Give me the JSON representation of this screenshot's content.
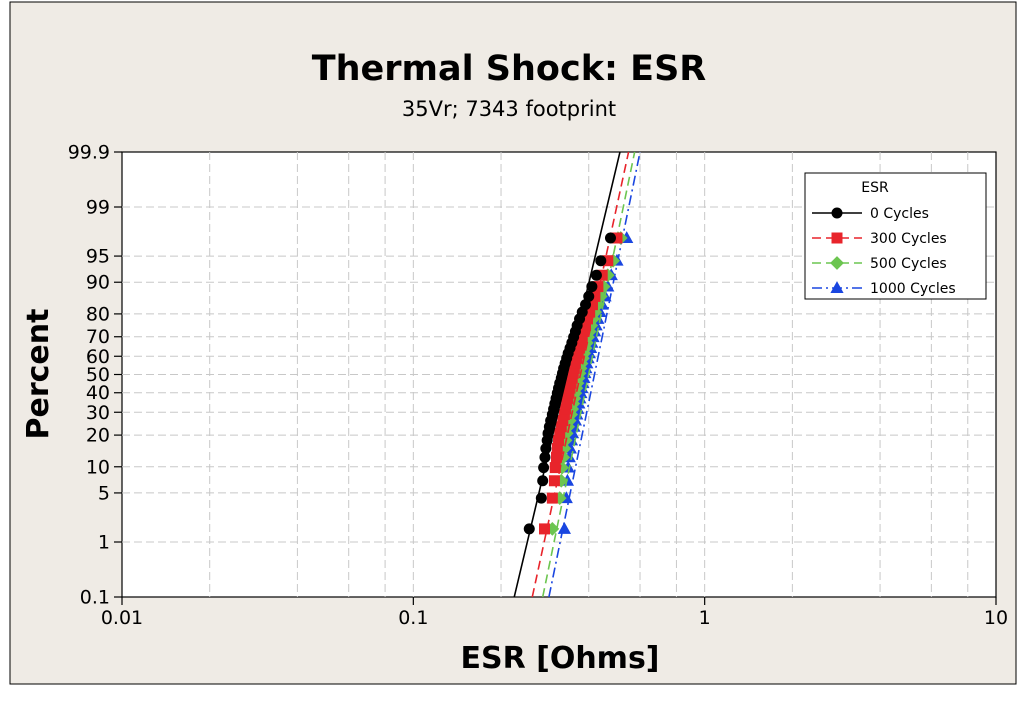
{
  "chart_data": {
    "type": "scatter",
    "title": "Thermal Shock: ESR",
    "subtitle": "35Vr; 7343 footprint",
    "xlabel": "ESR [Ohms]",
    "ylabel": "Percent",
    "x_scale": "log",
    "y_scale": "normal-probability",
    "xlim": [
      0.01,
      10
    ],
    "ylim": [
      0.1,
      99.9
    ],
    "x_ticks": [
      {
        "value": 0.01,
        "label": "0.01"
      },
      {
        "value": 0.1,
        "label": "0.1"
      },
      {
        "value": 1,
        "label": "1"
      },
      {
        "value": 10,
        "label": "10"
      }
    ],
    "y_ticks": [
      {
        "value": 0.1,
        "label": "0.1"
      },
      {
        "value": 1,
        "label": "1"
      },
      {
        "value": 5,
        "label": "5"
      },
      {
        "value": 10,
        "label": "10"
      },
      {
        "value": 20,
        "label": "20"
      },
      {
        "value": 30,
        "label": "30"
      },
      {
        "value": 40,
        "label": "40"
      },
      {
        "value": 50,
        "label": "50"
      },
      {
        "value": 60,
        "label": "60"
      },
      {
        "value": 70,
        "label": "70"
      },
      {
        "value": 80,
        "label": "80"
      },
      {
        "value": 90,
        "label": "90"
      },
      {
        "value": 95,
        "label": "95"
      },
      {
        "value": 99,
        "label": "99"
      },
      {
        "value": 99.9,
        "label": "99.9"
      }
    ],
    "grid": true,
    "legend": {
      "title": "ESR",
      "position": "top-right"
    },
    "series": [
      {
        "name": "0 Cycles",
        "color": "#000000",
        "marker": "circle",
        "line_style": "solid",
        "fit_line": [
          [
            0.222,
            0.1
          ],
          [
            0.512,
            99.9
          ]
        ],
        "points": [
          [
            0.25,
            1.6
          ],
          [
            0.275,
            4.3
          ],
          [
            0.278,
            7.0
          ],
          [
            0.28,
            9.8
          ],
          [
            0.283,
            12.5
          ],
          [
            0.285,
            15.2
          ],
          [
            0.288,
            18.0
          ],
          [
            0.29,
            20.7
          ],
          [
            0.293,
            23.4
          ],
          [
            0.296,
            26.1
          ],
          [
            0.3,
            28.9
          ],
          [
            0.303,
            31.6
          ],
          [
            0.306,
            34.3
          ],
          [
            0.309,
            37.0
          ],
          [
            0.312,
            39.8
          ],
          [
            0.315,
            42.5
          ],
          [
            0.318,
            45.2
          ],
          [
            0.322,
            48.0
          ],
          [
            0.325,
            50.7
          ],
          [
            0.328,
            53.4
          ],
          [
            0.332,
            56.1
          ],
          [
            0.336,
            58.9
          ],
          [
            0.34,
            61.6
          ],
          [
            0.345,
            64.3
          ],
          [
            0.35,
            67.0
          ],
          [
            0.355,
            69.8
          ],
          [
            0.36,
            72.5
          ],
          [
            0.365,
            75.2
          ],
          [
            0.372,
            78.0
          ],
          [
            0.38,
            80.7
          ],
          [
            0.39,
            83.4
          ],
          [
            0.4,
            86.1
          ],
          [
            0.41,
            88.9
          ],
          [
            0.425,
            91.6
          ],
          [
            0.44,
            94.3
          ],
          [
            0.475,
            97.1
          ]
        ]
      },
      {
        "name": "300 Cycles",
        "color": "#e8242b",
        "marker": "square",
        "line_style": "dashed",
        "fit_line": [
          [
            0.256,
            0.1
          ],
          [
            0.548,
            99.9
          ]
        ],
        "points": [
          [
            0.282,
            1.6
          ],
          [
            0.3,
            4.3
          ],
          [
            0.305,
            7.0
          ],
          [
            0.307,
            9.8
          ],
          [
            0.31,
            12.5
          ],
          [
            0.312,
            15.2
          ],
          [
            0.315,
            18.0
          ],
          [
            0.318,
            20.7
          ],
          [
            0.322,
            23.4
          ],
          [
            0.326,
            26.1
          ],
          [
            0.33,
            28.9
          ],
          [
            0.333,
            31.6
          ],
          [
            0.336,
            34.3
          ],
          [
            0.339,
            37.0
          ],
          [
            0.342,
            39.8
          ],
          [
            0.345,
            42.5
          ],
          [
            0.348,
            45.2
          ],
          [
            0.351,
            48.0
          ],
          [
            0.354,
            50.7
          ],
          [
            0.357,
            53.4
          ],
          [
            0.36,
            56.1
          ],
          [
            0.364,
            58.9
          ],
          [
            0.368,
            61.6
          ],
          [
            0.372,
            64.3
          ],
          [
            0.376,
            67.0
          ],
          [
            0.38,
            69.8
          ],
          [
            0.385,
            72.5
          ],
          [
            0.39,
            75.2
          ],
          [
            0.396,
            78.0
          ],
          [
            0.403,
            80.7
          ],
          [
            0.412,
            83.4
          ],
          [
            0.42,
            86.1
          ],
          [
            0.43,
            88.9
          ],
          [
            0.445,
            91.6
          ],
          [
            0.465,
            94.3
          ],
          [
            0.5,
            97.1
          ]
        ]
      },
      {
        "name": "500 Cycles",
        "color": "#6cc550",
        "marker": "diamond",
        "line_style": "dashed",
        "fit_line": [
          [
            0.278,
            0.1
          ],
          [
            0.575,
            99.9
          ]
        ],
        "points": [
          [
            0.3,
            1.6
          ],
          [
            0.318,
            4.3
          ],
          [
            0.322,
            7.0
          ],
          [
            0.324,
            9.8
          ],
          [
            0.327,
            12.5
          ],
          [
            0.33,
            15.2
          ],
          [
            0.333,
            18.0
          ],
          [
            0.336,
            20.7
          ],
          [
            0.34,
            23.4
          ],
          [
            0.344,
            26.1
          ],
          [
            0.348,
            28.9
          ],
          [
            0.351,
            31.6
          ],
          [
            0.354,
            34.3
          ],
          [
            0.357,
            37.0
          ],
          [
            0.36,
            39.8
          ],
          [
            0.363,
            42.5
          ],
          [
            0.366,
            45.2
          ],
          [
            0.369,
            48.0
          ],
          [
            0.372,
            50.7
          ],
          [
            0.375,
            53.4
          ],
          [
            0.378,
            56.1
          ],
          [
            0.382,
            58.9
          ],
          [
            0.386,
            61.6
          ],
          [
            0.39,
            64.3
          ],
          [
            0.394,
            67.0
          ],
          [
            0.398,
            69.8
          ],
          [
            0.403,
            72.5
          ],
          [
            0.408,
            75.2
          ],
          [
            0.414,
            78.0
          ],
          [
            0.421,
            80.7
          ],
          [
            0.43,
            83.4
          ],
          [
            0.44,
            86.1
          ],
          [
            0.45,
            88.9
          ],
          [
            0.465,
            91.6
          ],
          [
            0.485,
            94.3
          ],
          [
            0.515,
            97.1
          ]
        ]
      },
      {
        "name": "1000 Cycles",
        "color": "#1a46e0",
        "marker": "triangle",
        "line_style": "dashdot",
        "fit_line": [
          [
            0.292,
            0.1
          ],
          [
            0.6,
            99.9
          ]
        ],
        "points": [
          [
            0.33,
            1.6
          ],
          [
            0.335,
            4.3
          ],
          [
            0.338,
            7.0
          ],
          [
            0.34,
            9.8
          ],
          [
            0.343,
            12.5
          ],
          [
            0.346,
            15.2
          ],
          [
            0.349,
            18.0
          ],
          [
            0.352,
            20.7
          ],
          [
            0.356,
            23.4
          ],
          [
            0.36,
            26.1
          ],
          [
            0.364,
            28.9
          ],
          [
            0.367,
            31.6
          ],
          [
            0.37,
            34.3
          ],
          [
            0.373,
            37.0
          ],
          [
            0.376,
            39.8
          ],
          [
            0.379,
            42.5
          ],
          [
            0.382,
            45.2
          ],
          [
            0.385,
            48.0
          ],
          [
            0.388,
            50.7
          ],
          [
            0.391,
            53.4
          ],
          [
            0.394,
            56.1
          ],
          [
            0.398,
            58.9
          ],
          [
            0.402,
            61.6
          ],
          [
            0.406,
            64.3
          ],
          [
            0.41,
            67.0
          ],
          [
            0.414,
            69.8
          ],
          [
            0.419,
            72.5
          ],
          [
            0.424,
            75.2
          ],
          [
            0.43,
            78.0
          ],
          [
            0.437,
            80.7
          ],
          [
            0.445,
            83.4
          ],
          [
            0.455,
            86.1
          ],
          [
            0.465,
            88.9
          ],
          [
            0.478,
            91.6
          ],
          [
            0.5,
            94.3
          ],
          [
            0.54,
            97.1
          ]
        ]
      }
    ]
  },
  "colors": {
    "frame_background": "#efebe5",
    "plot_background": "#ffffff",
    "grid": "#c8c8c8"
  }
}
